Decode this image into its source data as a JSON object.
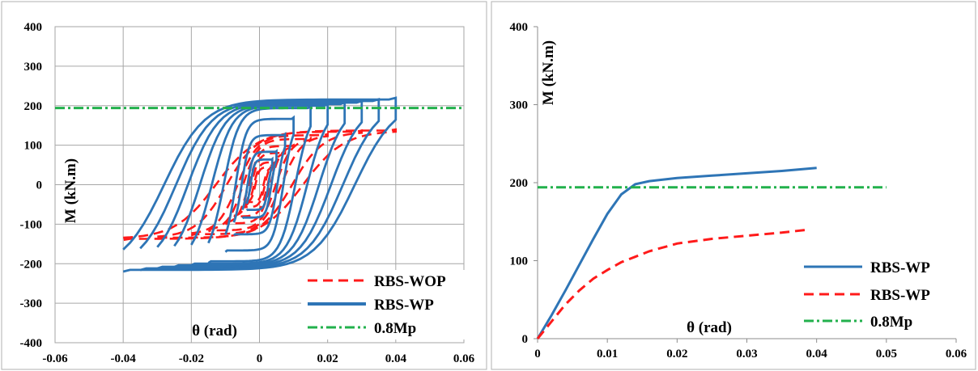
{
  "colors": {
    "blue": "#2E75B6",
    "red": "#FF1A1A",
    "green": "#22B14C",
    "grid": "#A6A6A6"
  },
  "chart_data": [
    {
      "type": "line",
      "title": "",
      "xlabel": "θ (rad)",
      "ylabel": "M (kN.m)",
      "xlim": [
        -0.06,
        0.06
      ],
      "ylim": [
        -400,
        400
      ],
      "x_ticks": [
        "-0.06",
        "-0.04",
        "-0.02",
        "0",
        "0.02",
        "0.04",
        "0.06"
      ],
      "y_ticks": [
        "400",
        "300",
        "200",
        "100",
        "0",
        "-100",
        "-200",
        "-300",
        "-400"
      ],
      "grid": true,
      "legend_position": "bottom-right",
      "series": [
        {
          "name": "RBS-WOP",
          "style": "dashed",
          "color": "#FF1A1A",
          "cycle_amplitudes": [
            0.00375,
            0.005,
            0.0075,
            0.01,
            0.015,
            0.02,
            0.03,
            0.04
          ],
          "peak_moments": [
            45,
            58,
            82,
            100,
            118,
            128,
            137,
            140
          ]
        },
        {
          "name": "RBS-WP",
          "style": "solid",
          "color": "#2E75B6",
          "cycle_amplitudes": [
            0.00375,
            0.005,
            0.0075,
            0.01,
            0.015,
            0.02,
            0.025,
            0.03,
            0.035,
            0.04
          ],
          "peak_moments": [
            65,
            85,
            128,
            170,
            198,
            204,
            208,
            212,
            216,
            220
          ]
        },
        {
          "name": "0.8Mp",
          "style": "dash-dot",
          "color": "#22B14C",
          "x": [
            -0.06,
            0.06
          ],
          "y": [
            194,
            194
          ]
        }
      ]
    },
    {
      "type": "line",
      "title": "",
      "xlabel": "θ (rad)",
      "ylabel": "M (kN.m)",
      "xlim": [
        0,
        0.06
      ],
      "ylim": [
        0,
        400
      ],
      "x_ticks": [
        "0",
        "0.01",
        "0.02",
        "0.03",
        "0.04",
        "0.05",
        "0.06"
      ],
      "y_ticks": [
        "400",
        "300",
        "200",
        "100",
        "0"
      ],
      "grid": false,
      "legend_position": "bottom-right",
      "series": [
        {
          "name": "RBS-WP",
          "style": "solid",
          "color": "#2E75B6",
          "x": [
            0,
            0.002,
            0.004,
            0.006,
            0.008,
            0.01,
            0.012,
            0.014,
            0.016,
            0.02,
            0.025,
            0.03,
            0.035,
            0.04
          ],
          "y": [
            0,
            30,
            62,
            95,
            128,
            160,
            185,
            198,
            202,
            206,
            209,
            212,
            215,
            219
          ]
        },
        {
          "name": "RBS-WP",
          "style": "dashed",
          "color": "#FF1A1A",
          "x": [
            0,
            0.002,
            0.004,
            0.006,
            0.008,
            0.01,
            0.012,
            0.014,
            0.016,
            0.02,
            0.025,
            0.03,
            0.035,
            0.039
          ],
          "y": [
            0,
            22,
            44,
            62,
            77,
            88,
            98,
            105,
            112,
            122,
            128,
            132,
            136,
            140
          ]
        },
        {
          "name": "0.8Mp",
          "style": "dash-dot",
          "color": "#22B14C",
          "x": [
            0,
            0.05
          ],
          "y": [
            194,
            194
          ]
        }
      ]
    }
  ]
}
